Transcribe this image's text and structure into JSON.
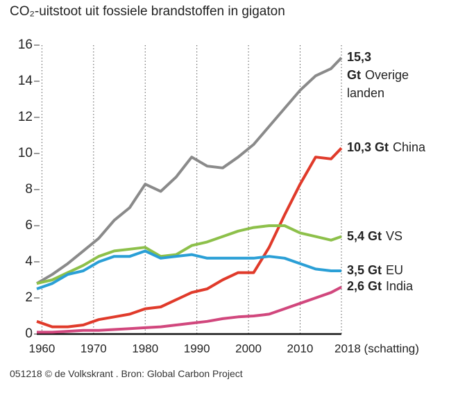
{
  "chart_data": {
    "type": "line",
    "title": "CO₂-uitstoot uit fossiele brandstoffen in gigaton",
    "source": "051218 © de Volkskrant . Bron: Global Carbon Project",
    "x": [
      1959,
      1962,
      1965,
      1968,
      1971,
      1974,
      1977,
      1980,
      1983,
      1986,
      1989,
      1992,
      1995,
      1998,
      2001,
      2004,
      2007,
      2010,
      2013,
      2016,
      2018
    ],
    "xlim": [
      1959,
      2018
    ],
    "xticks": [
      1960,
      1970,
      1980,
      1990,
      2000,
      2010,
      {
        "value": 2018,
        "label": "2018 (schatting)"
      }
    ],
    "ylim": [
      0,
      16
    ],
    "yticks": [
      0,
      2,
      4,
      6,
      8,
      10,
      12,
      14,
      16
    ],
    "series": [
      {
        "name": "Overige landen",
        "color": "#8a8a8a",
        "values": [
          2.8,
          3.3,
          3.9,
          4.6,
          5.3,
          6.3,
          7.0,
          8.3,
          7.9,
          8.7,
          9.8,
          9.3,
          9.2,
          9.8,
          10.5,
          11.5,
          12.5,
          13.5,
          14.3,
          14.7,
          15.3
        ],
        "value_labels": {
          "20": "15,3 Gt"
        }
      },
      {
        "name": "China",
        "color": "#e03a2a",
        "values": [
          0.7,
          0.4,
          0.4,
          0.5,
          0.8,
          0.95,
          1.1,
          1.4,
          1.5,
          1.9,
          2.3,
          2.5,
          3.0,
          3.4,
          3.4,
          4.8,
          6.6,
          8.3,
          9.8,
          9.7,
          10.3
        ],
        "value_labels": {
          "20": "10,3 Gt"
        }
      },
      {
        "name": "VS",
        "color": "#8dc04a",
        "values": [
          2.8,
          3.0,
          3.4,
          3.8,
          4.3,
          4.6,
          4.7,
          4.8,
          4.3,
          4.4,
          4.9,
          5.1,
          5.4,
          5.7,
          5.9,
          6.0,
          6.0,
          5.6,
          5.4,
          5.2,
          5.4
        ],
        "value_labels": {
          "20": "5,4 Gt"
        }
      },
      {
        "name": "EU",
        "color": "#2a9fd6",
        "values": [
          2.5,
          2.8,
          3.3,
          3.5,
          4.0,
          4.3,
          4.3,
          4.6,
          4.2,
          4.3,
          4.4,
          4.2,
          4.2,
          4.2,
          4.2,
          4.3,
          4.2,
          3.9,
          3.6,
          3.5,
          3.5
        ],
        "value_labels": {
          "20": "3,5 Gt"
        }
      },
      {
        "name": "India",
        "color": "#d1477d",
        "values": [
          0.1,
          0.1,
          0.15,
          0.2,
          0.2,
          0.25,
          0.3,
          0.35,
          0.4,
          0.5,
          0.6,
          0.7,
          0.85,
          0.95,
          1.0,
          1.1,
          1.4,
          1.7,
          2.0,
          2.3,
          2.6
        ],
        "value_labels": {
          "20": "2,6 Gt"
        }
      }
    ]
  }
}
